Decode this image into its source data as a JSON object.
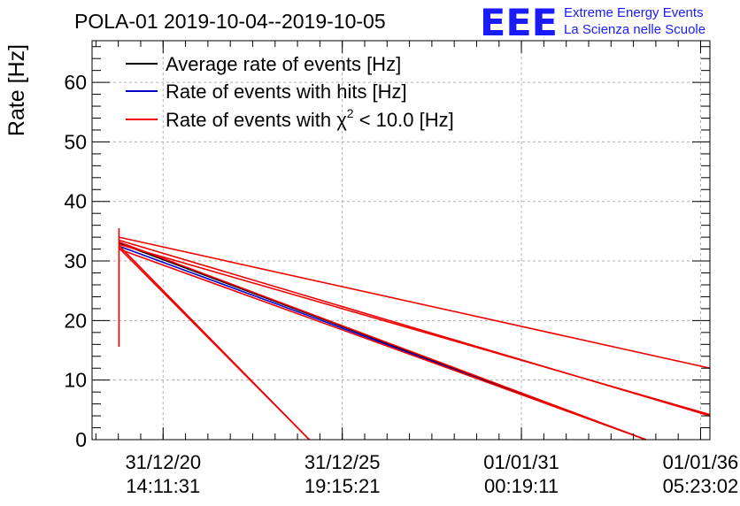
{
  "chart_data": {
    "type": "line",
    "title": "POLA-01 2019-10-04--2019-10-05",
    "ylabel": "Rate [Hz]",
    "xlabel": "",
    "ylim": [
      0,
      67
    ],
    "yticks": [
      0,
      10,
      20,
      30,
      40,
      50,
      60
    ],
    "xlim": [
      -0.2644,
      2.0347
    ],
    "xticks": [
      {
        "value": 0,
        "label_line1": "31/12/20",
        "label_line2": "14:11:31"
      },
      {
        "value": 0.6667,
        "label_line1": "31/12/25",
        "label_line2": "19:15:21"
      },
      {
        "value": 1.3333,
        "label_line1": "01/01/31",
        "label_line2": "00:19:11"
      },
      {
        "value": 2.0,
        "label_line1": "01/01/36",
        "label_line2": "05:23:02"
      }
    ],
    "grid": true,
    "legend_position": "top-left",
    "legend": [
      {
        "label": "Average rate of events [Hz]",
        "color": "#000000",
        "chi2": false
      },
      {
        "label": "Rate of events with hits [Hz]",
        "color": "#0000cc",
        "chi2": false
      },
      {
        "label_prefix": "Rate of events with ",
        "chi_symbol": "χ",
        "chi_sup": "2",
        "label_suffix": " < 10.0 [Hz]",
        "color": "#ee0000",
        "chi2": true
      }
    ],
    "series": [
      {
        "name": "Average rate of events [Hz]",
        "color": "#000000",
        "segments": [
          [
            [
              -0.1644,
              33.0
            ],
            [
              1.7964,
              0.0
            ]
          ]
        ]
      },
      {
        "name": "Rate of events with hits [Hz]",
        "color": "#0000cc",
        "segments": [
          [
            [
              -0.1644,
              32.5
            ],
            [
              1.7964,
              0.0
            ]
          ]
        ]
      },
      {
        "name": "Rate of events with chi2 < 10.0 [Hz]",
        "color": "#ee0000",
        "segments": [
          [
            [
              -0.1644,
              15.6
            ],
            [
              -0.1644,
              35.5
            ]
          ],
          [
            [
              -0.1644,
              34.0
            ],
            [
              2.0347,
              12.0
            ]
          ],
          [
            [
              -0.1644,
              33.5
            ],
            [
              2.0347,
              4.0
            ]
          ],
          [
            [
              -0.1644,
              32.8
            ],
            [
              2.0347,
              4.2
            ]
          ],
          [
            [
              -0.1644,
              33.2
            ],
            [
              1.7964,
              0.0
            ]
          ],
          [
            [
              -0.1644,
              32.0
            ],
            [
              1.7964,
              0.0
            ]
          ],
          [
            [
              -0.1644,
              32.2
            ],
            [
              0.5444,
              0.0
            ]
          ],
          [
            [
              -0.1644,
              32.6
            ],
            [
              0.5444,
              0.0
            ]
          ]
        ]
      }
    ]
  },
  "logo": {
    "mark": "EEE",
    "line1": "Extreme Energy Events",
    "line2": "La Scienza nelle Scuole",
    "color": "#1a1aff"
  }
}
